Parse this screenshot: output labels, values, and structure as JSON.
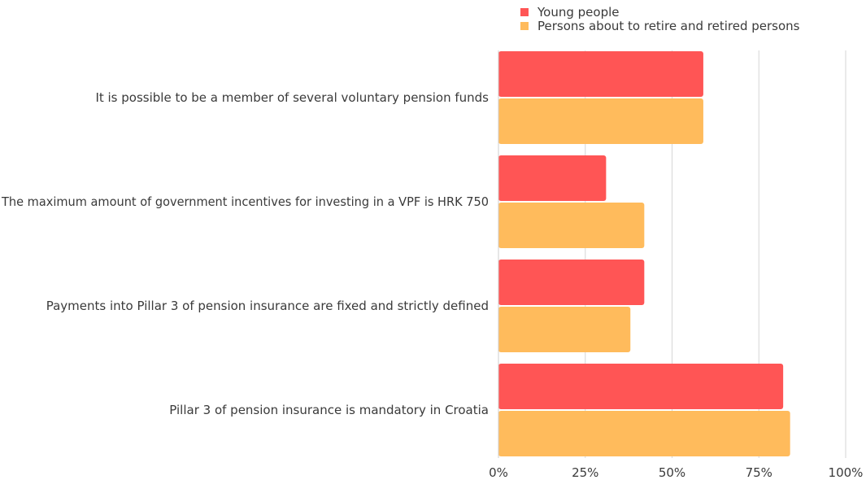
{
  "chart_data": {
    "type": "bar",
    "orientation": "horizontal",
    "categories": [
      "It is possible to be a member of several voluntary pension funds",
      "The maximum amount of government incentives for investing in a VPF is HRK 750",
      "Payments into Pillar 3 of pension insurance are fixed and strictly defined",
      "Pillar 3 of pension insurance is mandatory in Croatia"
    ],
    "series": [
      {
        "name": "Young people",
        "color": "#ff5555",
        "values": [
          59,
          31,
          42,
          82
        ]
      },
      {
        "name": "Persons about to retire and retired persons",
        "color": "#ffbb5c",
        "values": [
          59,
          42,
          38,
          84
        ]
      }
    ],
    "xlim": [
      0,
      100
    ],
    "x_ticks": [
      0,
      25,
      50,
      75,
      100
    ],
    "x_tick_labels": [
      "0%",
      "25%",
      "50%",
      "75%",
      "100%"
    ],
    "title": "",
    "xlabel": "",
    "ylabel": "",
    "grid": true,
    "legend_position": "top-right"
  }
}
